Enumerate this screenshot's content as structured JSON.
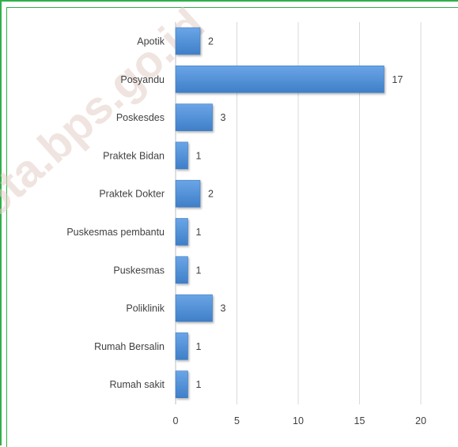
{
  "watermark": {
    "text": "kota.bps.go.id",
    "color": "#e5cfc8"
  },
  "chart_data": {
    "type": "bar",
    "orientation": "horizontal",
    "title": "",
    "xlabel": "",
    "ylabel": "",
    "categories": [
      "Apotik",
      "Posyandu",
      "Poskesdes",
      "Praktek Bidan",
      "Praktek Dokter",
      "Puskesmas pembantu",
      "Puskesmas",
      "Poliklinik",
      "Rumah Bersalin",
      "Rumah sakit"
    ],
    "values": [
      2,
      17,
      3,
      1,
      2,
      1,
      1,
      3,
      1,
      1
    ],
    "value_labels": [
      "2",
      "17",
      "3",
      "1",
      "2",
      "1",
      "1",
      "3",
      "1",
      "1"
    ],
    "xlim": [
      0,
      20
    ],
    "xticks": [
      0,
      5,
      10,
      15,
      20
    ],
    "xtick_labels": [
      "0",
      "5",
      "10",
      "15",
      "20"
    ],
    "grid": "vertical",
    "legend": "none",
    "bar_color": "#4f8fd6",
    "bar_edge_color": "#3b78bf",
    "grid_color": "#d9d9d9",
    "frame_color": "#2fb04a"
  }
}
